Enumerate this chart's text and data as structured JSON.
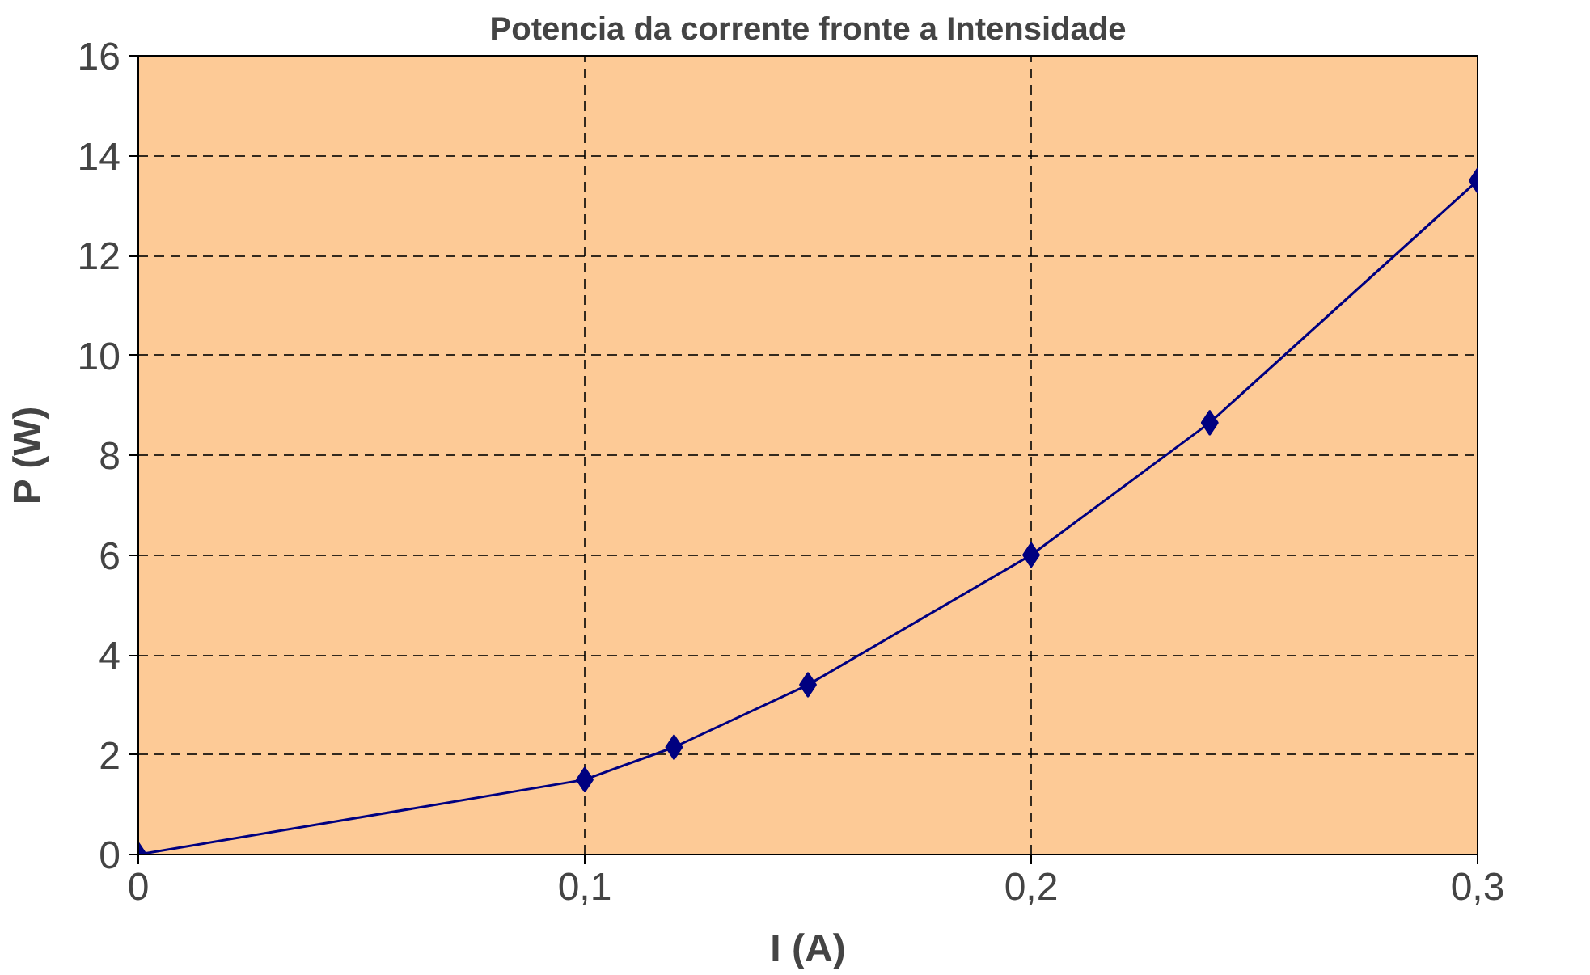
{
  "chart_data": {
    "type": "line",
    "title": "Potencia da corrente fronte a Intensidade",
    "xlabel": "I (A)",
    "ylabel": "P (W)",
    "x": [
      0,
      0.1,
      0.12,
      0.15,
      0.2,
      0.24,
      0.3
    ],
    "series": [
      {
        "color": "#000080",
        "values": [
          0,
          1.5,
          2.15,
          3.4,
          6.0,
          8.65,
          13.5
        ]
      }
    ],
    "xlim": [
      0,
      0.3
    ],
    "ylim": [
      0,
      16
    ],
    "xticks": [
      0,
      {
        "value": 0.1,
        "label": "0,1"
      },
      {
        "value": 0.2,
        "label": "0,2"
      },
      {
        "value": 0.3,
        "label": "0,3"
      }
    ],
    "yticks": [
      0,
      2,
      4,
      6,
      8,
      10,
      12,
      14,
      16
    ],
    "grid": true,
    "marker": "diamond",
    "line_style": "solid"
  }
}
